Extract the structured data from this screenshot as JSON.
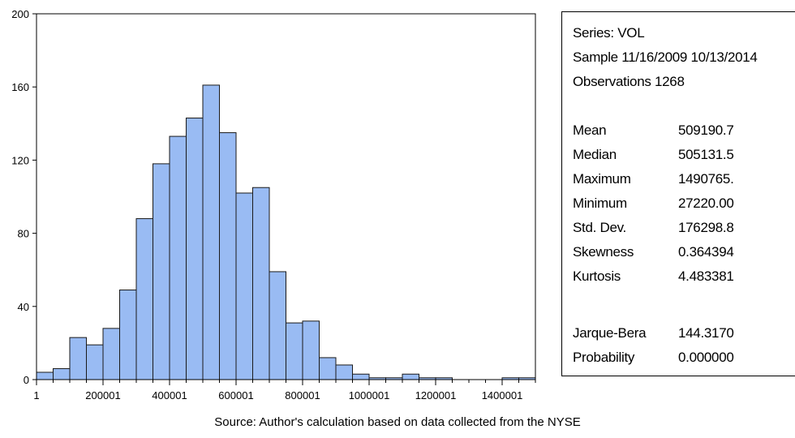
{
  "chart_data": {
    "type": "bar",
    "title": "",
    "xlabel": "",
    "ylabel": "",
    "bin_width": 50000,
    "x_start": 1,
    "xlim": [
      1,
      1500001
    ],
    "ylim": [
      0,
      200
    ],
    "y_ticks": [
      0,
      40,
      80,
      120,
      160,
      200
    ],
    "x_ticks": [
      1,
      200001,
      400001,
      600001,
      800001,
      1000001,
      1200001,
      1400001
    ],
    "x_tick_labels": [
      "1",
      "200001",
      "400001",
      "600001",
      "800001",
      "1000001",
      "1200001",
      "1400001"
    ],
    "values": [
      4,
      6,
      23,
      19,
      28,
      49,
      88,
      118,
      133,
      143,
      161,
      135,
      102,
      105,
      59,
      31,
      32,
      12,
      8,
      3,
      1,
      1,
      3,
      1,
      1,
      0,
      0,
      0,
      1,
      1
    ],
    "bar_color": "#99bbf3",
    "grid": false
  },
  "stats": {
    "series": "Series: VOL",
    "sample": "Sample 11/16/2009 10/13/2014",
    "observations": "Observations 1268",
    "rows": [
      {
        "label": "Mean",
        "value": "509190.7"
      },
      {
        "label": "Median",
        "value": "505131.5"
      },
      {
        "label": "Maximum",
        "value": "1490765."
      },
      {
        "label": "Minimum",
        "value": "27220.00"
      },
      {
        "label": "Std. Dev.",
        "value": "176298.8"
      },
      {
        "label": "Skewness",
        "value": "0.364394"
      },
      {
        "label": "Kurtosis",
        "value": "4.483381"
      }
    ],
    "jb_rows": [
      {
        "label": "Jarque-Bera",
        "value": "144.3170"
      },
      {
        "label": "Probability",
        "value": "0.000000"
      }
    ]
  },
  "source_note": "Source: Author's calculation based on data collected from the NYSE"
}
